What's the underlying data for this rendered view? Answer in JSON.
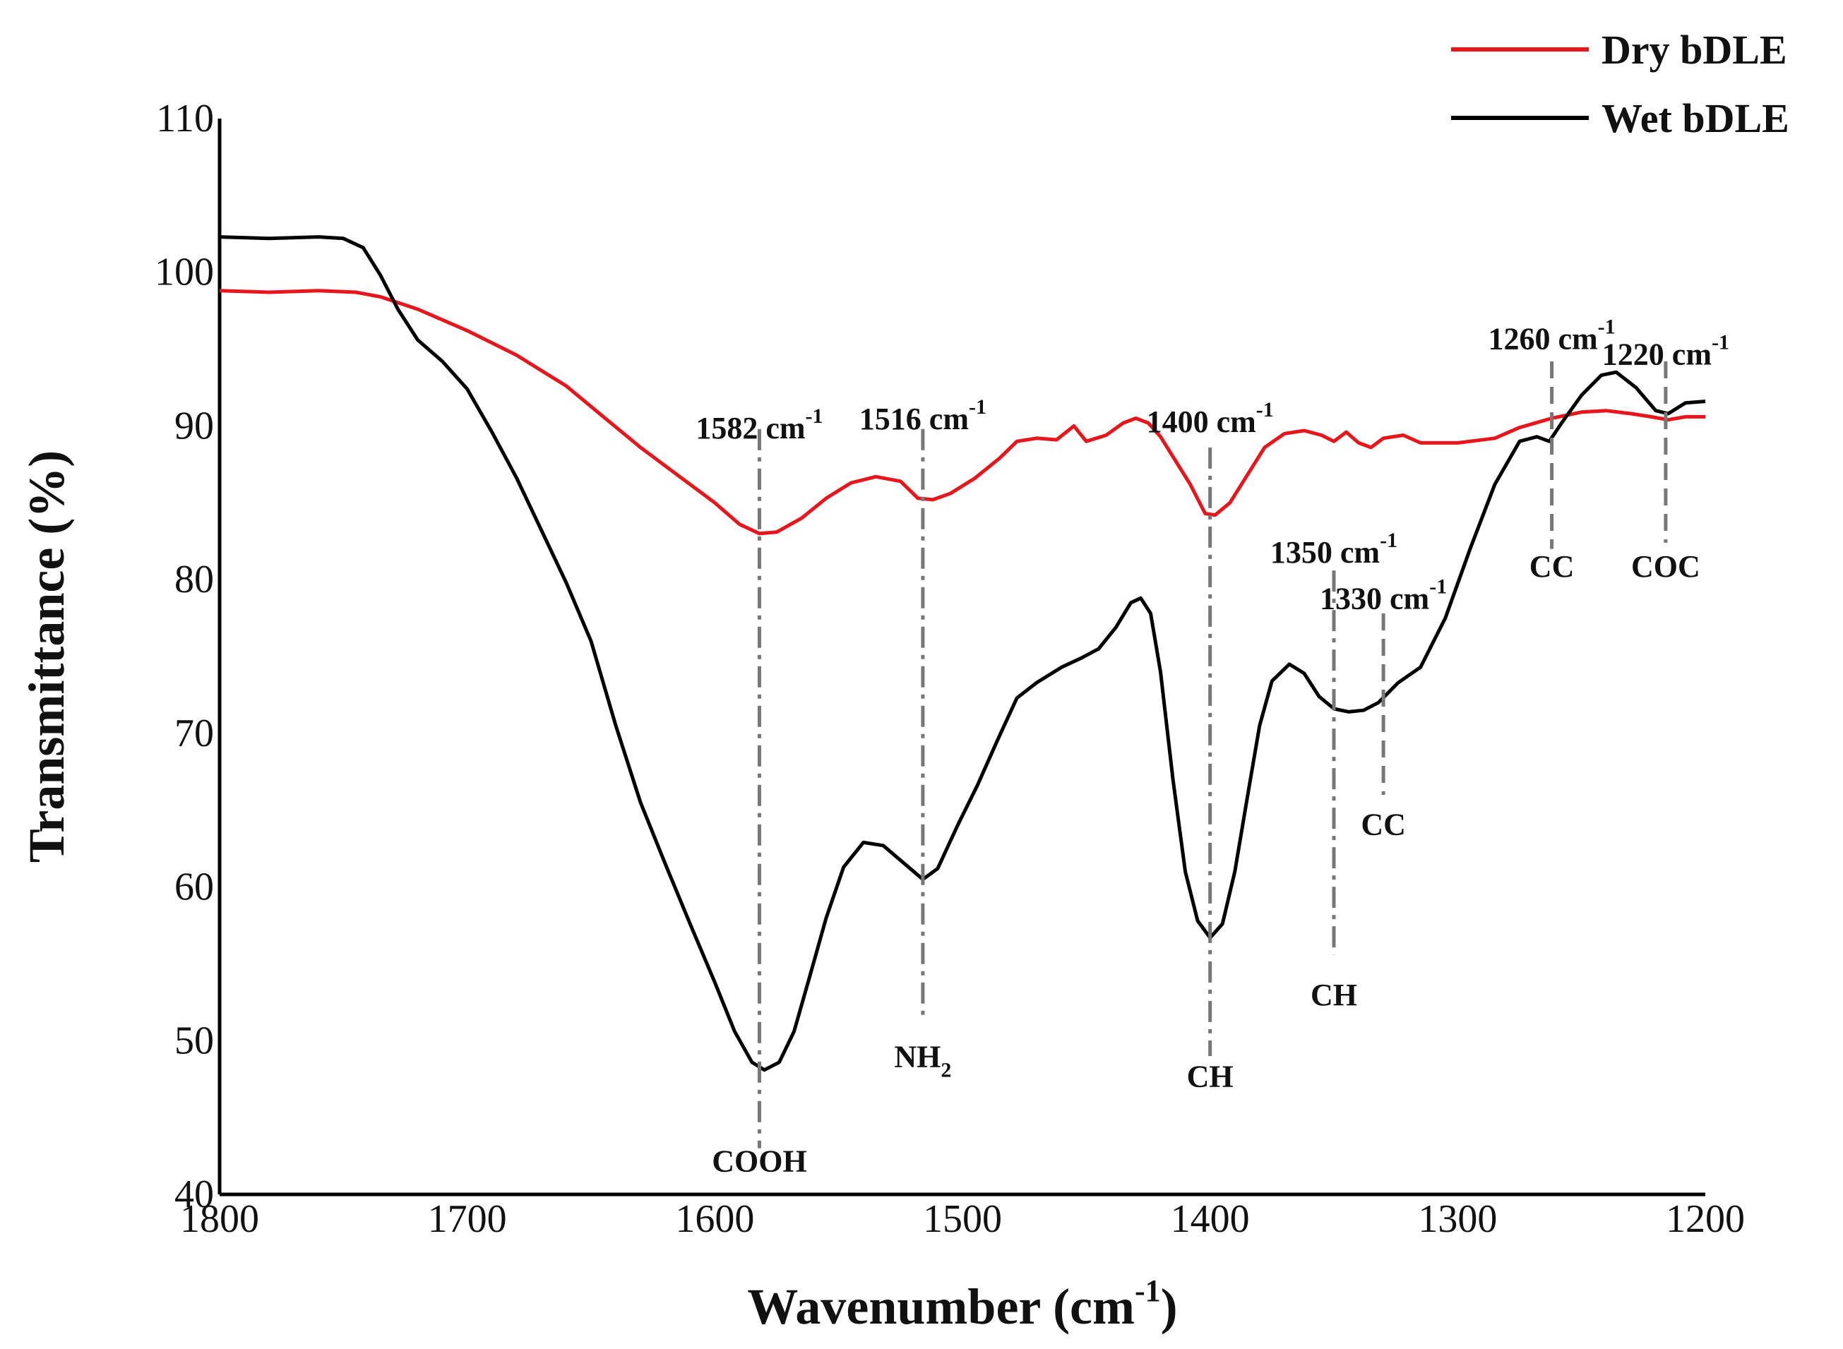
{
  "chart_data": {
    "type": "line",
    "xlabel": "Wavenumber",
    "xlabel_unit": "(cm",
    "xlabel_sup": "-1",
    "xlabel_close": ")",
    "ylabel": "Transmittance (%)",
    "xlim": [
      1800,
      1200
    ],
    "ylim": [
      40,
      110
    ],
    "x_ticks": [
      "1800",
      "1700",
      "1600",
      "1500",
      "1400",
      "1300",
      "1200"
    ],
    "y_ticks": [
      "110",
      "100",
      "90",
      "80",
      "70",
      "60",
      "50",
      "40"
    ],
    "legend_position": "top-right",
    "series": [
      {
        "name": "Dry bDLE",
        "color": "#e8161b",
        "points": [
          [
            1800,
            98.8
          ],
          [
            1780,
            98.7
          ],
          [
            1760,
            98.8
          ],
          [
            1745,
            98.7
          ],
          [
            1735,
            98.4
          ],
          [
            1720,
            97.6
          ],
          [
            1700,
            96.2
          ],
          [
            1680,
            94.6
          ],
          [
            1660,
            92.6
          ],
          [
            1645,
            90.6
          ],
          [
            1630,
            88.6
          ],
          [
            1615,
            86.8
          ],
          [
            1600,
            85.0
          ],
          [
            1590,
            83.6
          ],
          [
            1582,
            83.0
          ],
          [
            1575,
            83.1
          ],
          [
            1565,
            84.0
          ],
          [
            1555,
            85.3
          ],
          [
            1545,
            86.3
          ],
          [
            1535,
            86.7
          ],
          [
            1525,
            86.4
          ],
          [
            1518,
            85.3
          ],
          [
            1512,
            85.2
          ],
          [
            1505,
            85.6
          ],
          [
            1495,
            86.6
          ],
          [
            1485,
            87.9
          ],
          [
            1478,
            89.0
          ],
          [
            1470,
            89.2
          ],
          [
            1462,
            89.1
          ],
          [
            1455,
            90.0
          ],
          [
            1450,
            89.0
          ],
          [
            1442,
            89.4
          ],
          [
            1435,
            90.2
          ],
          [
            1430,
            90.5
          ],
          [
            1425,
            90.2
          ],
          [
            1420,
            89.3
          ],
          [
            1415,
            88.0
          ],
          [
            1408,
            86.2
          ],
          [
            1402,
            84.3
          ],
          [
            1398,
            84.2
          ],
          [
            1392,
            85.0
          ],
          [
            1385,
            86.8
          ],
          [
            1378,
            88.6
          ],
          [
            1370,
            89.5
          ],
          [
            1362,
            89.7
          ],
          [
            1355,
            89.4
          ],
          [
            1350,
            89.0
          ],
          [
            1345,
            89.6
          ],
          [
            1340,
            88.9
          ],
          [
            1335,
            88.6
          ],
          [
            1330,
            89.2
          ],
          [
            1322,
            89.4
          ],
          [
            1315,
            88.9
          ],
          [
            1300,
            88.9
          ],
          [
            1285,
            89.2
          ],
          [
            1275,
            89.9
          ],
          [
            1262,
            90.5
          ],
          [
            1250,
            90.9
          ],
          [
            1240,
            91.0
          ],
          [
            1230,
            90.8
          ],
          [
            1222,
            90.6
          ],
          [
            1215,
            90.4
          ],
          [
            1208,
            90.6
          ],
          [
            1200,
            90.6
          ]
        ]
      },
      {
        "name": "Wet bDLE",
        "color": "#000000",
        "points": [
          [
            1800,
            102.3
          ],
          [
            1780,
            102.2
          ],
          [
            1760,
            102.3
          ],
          [
            1750,
            102.2
          ],
          [
            1742,
            101.6
          ],
          [
            1735,
            99.8
          ],
          [
            1728,
            97.6
          ],
          [
            1720,
            95.6
          ],
          [
            1710,
            94.2
          ],
          [
            1700,
            92.4
          ],
          [
            1690,
            89.6
          ],
          [
            1680,
            86.6
          ],
          [
            1670,
            83.2
          ],
          [
            1660,
            79.8
          ],
          [
            1650,
            76.0
          ],
          [
            1640,
            70.5
          ],
          [
            1630,
            65.5
          ],
          [
            1620,
            61.5
          ],
          [
            1610,
            57.6
          ],
          [
            1600,
            53.8
          ],
          [
            1592,
            50.6
          ],
          [
            1585,
            48.6
          ],
          [
            1580,
            48.1
          ],
          [
            1574,
            48.6
          ],
          [
            1568,
            50.6
          ],
          [
            1562,
            54.0
          ],
          [
            1555,
            58.0
          ],
          [
            1548,
            61.3
          ],
          [
            1540,
            62.9
          ],
          [
            1532,
            62.7
          ],
          [
            1524,
            61.6
          ],
          [
            1516,
            60.5
          ],
          [
            1510,
            61.2
          ],
          [
            1502,
            64.0
          ],
          [
            1494,
            66.6
          ],
          [
            1486,
            69.5
          ],
          [
            1478,
            72.3
          ],
          [
            1470,
            73.3
          ],
          [
            1460,
            74.3
          ],
          [
            1452,
            74.9
          ],
          [
            1445,
            75.5
          ],
          [
            1438,
            76.9
          ],
          [
            1432,
            78.5
          ],
          [
            1428,
            78.8
          ],
          [
            1424,
            77.8
          ],
          [
            1420,
            74.0
          ],
          [
            1415,
            67.0
          ],
          [
            1410,
            61.0
          ],
          [
            1405,
            57.8
          ],
          [
            1400,
            56.7
          ],
          [
            1395,
            57.6
          ],
          [
            1390,
            61.0
          ],
          [
            1385,
            65.8
          ],
          [
            1380,
            70.5
          ],
          [
            1375,
            73.4
          ],
          [
            1368,
            74.5
          ],
          [
            1362,
            73.9
          ],
          [
            1356,
            72.4
          ],
          [
            1350,
            71.6
          ],
          [
            1344,
            71.4
          ],
          [
            1338,
            71.5
          ],
          [
            1332,
            72.0
          ],
          [
            1324,
            73.3
          ],
          [
            1315,
            74.3
          ],
          [
            1305,
            77.5
          ],
          [
            1295,
            82.0
          ],
          [
            1285,
            86.2
          ],
          [
            1275,
            89.0
          ],
          [
            1268,
            89.3
          ],
          [
            1263,
            89.0
          ],
          [
            1258,
            90.2
          ],
          [
            1250,
            92.0
          ],
          [
            1242,
            93.3
          ],
          [
            1236,
            93.5
          ],
          [
            1228,
            92.5
          ],
          [
            1220,
            91.0
          ],
          [
            1215,
            90.8
          ],
          [
            1208,
            91.5
          ],
          [
            1200,
            91.6
          ]
        ]
      }
    ],
    "annotations": [
      {
        "x": 1582,
        "line_top": 89.8,
        "line_bottom": 43.0,
        "style": "dashdot",
        "top_label": "1582 cm",
        "top_sup": "-1",
        "top_label_y": 89.2,
        "bottom_label": "COOH",
        "bottom_label_y": 41.5
      },
      {
        "x": 1516,
        "line_top": 89.8,
        "line_bottom": 51.5,
        "style": "dashdot",
        "top_label": "1516 cm",
        "top_sup": "-1",
        "top_label_y": 89.8,
        "bottom_label": "NH",
        "bottom_sub": "2",
        "bottom_label_y": 48.3
      },
      {
        "x": 1400,
        "line_top": 88.6,
        "line_bottom": 49.0,
        "style": "dashdot",
        "top_label": "1400 cm",
        "top_sup": "-1",
        "top_label_y": 89.6,
        "bottom_label": "CH",
        "bottom_label_y": 47.0
      },
      {
        "x": 1350,
        "line_top": 80.6,
        "line_bottom": 55.6,
        "style": "dashdot",
        "top_label": "1350 cm",
        "top_sup": "-1",
        "top_label_y": 81.1,
        "bottom_label": "CH",
        "bottom_label_y": 52.3
      },
      {
        "x": 1330,
        "line_top": 77.8,
        "line_bottom": 66.0,
        "style": "dashed",
        "top_label": "1330 cm",
        "top_sup": "-1",
        "top_label_y": 78.1,
        "bottom_label": "CC",
        "bottom_label_y": 63.4
      },
      {
        "x": 1262,
        "line_top": 94.2,
        "line_bottom": 82.0,
        "style": "dashed",
        "top_label": "1260 cm",
        "top_sup": "-1",
        "top_label_y": 95.0,
        "bottom_label": "CC",
        "bottom_label_y": 80.2
      },
      {
        "x": 1216,
        "line_top": 94.2,
        "line_bottom": 82.4,
        "style": "dashed",
        "top_label": "1220 cm",
        "top_sup": "-1",
        "top_label_y": 94.0,
        "bottom_label": "COC",
        "bottom_label_y": 80.2
      }
    ]
  }
}
